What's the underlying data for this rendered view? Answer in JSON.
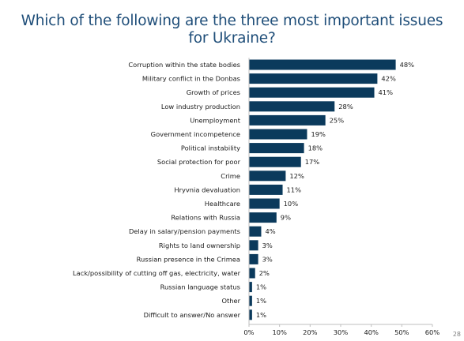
{
  "slide": {
    "title": "Which of the following are the three most important issues for Ukraine?",
    "page_number": "28"
  },
  "colors": {
    "bar": "#0b3a5c",
    "title": "#1f4e79",
    "axis": "#bfbfbf",
    "label": "#1a1a1a"
  },
  "chart_data": {
    "type": "bar",
    "orientation": "horizontal",
    "title": "Which of the following are the three most important issues for Ukraine?",
    "categories": [
      "Corruption within the state bodies",
      "Military conflict in the Donbas",
      "Growth of prices",
      "Low industry production",
      "Unemployment",
      "Government incompetence",
      "Political instability",
      "Social protection for poor",
      "Crime",
      "Hryvnia devaluation",
      "Healthcare",
      "Relations with Russia",
      "Delay in salary/pension payments",
      "Rights to land ownership",
      "Russian presence in the Crimea",
      "Lack/possibility of cutting off gas, electricity, water",
      "Russian language status",
      "Other",
      "Difficult to answer/No answer"
    ],
    "values": [
      48,
      42,
      41,
      28,
      25,
      19,
      18,
      17,
      12,
      11,
      10,
      9,
      4,
      3,
      3,
      2,
      1,
      1,
      1
    ],
    "value_labels": [
      "48%",
      "42%",
      "41%",
      "28%",
      "25%",
      "19%",
      "18%",
      "17%",
      "12%",
      "11%",
      "10%",
      "9%",
      "4%",
      "3%",
      "3%",
      "2%",
      "1%",
      "1%",
      "1%"
    ],
    "xlim": [
      0,
      60
    ],
    "xticks": [
      "0%",
      "10%",
      "20%",
      "30%",
      "40%",
      "50%",
      "60%"
    ],
    "xlabel": "",
    "ylabel": "",
    "grid": false,
    "legend": "none"
  }
}
